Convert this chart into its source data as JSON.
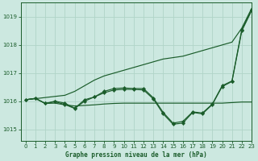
{
  "background_color": "#cce8e0",
  "grid_color": "#b0d4c8",
  "line_color": "#1a5c2a",
  "title": "Graphe pression niveau de la mer (hPa)",
  "xlim": [
    -0.5,
    23
  ],
  "ylim": [
    1014.6,
    1019.5
  ],
  "yticks": [
    1015,
    1016,
    1017,
    1018,
    1019
  ],
  "xticks": [
    0,
    1,
    2,
    3,
    4,
    5,
    6,
    7,
    8,
    9,
    10,
    11,
    12,
    13,
    14,
    15,
    16,
    17,
    18,
    19,
    20,
    21,
    22,
    23
  ],
  "series_diag": [
    1016.05,
    1016.09,
    1016.13,
    1016.17,
    1016.21,
    1016.35,
    1016.55,
    1016.75,
    1016.9,
    1017.0,
    1017.1,
    1017.2,
    1017.3,
    1017.4,
    1017.5,
    1017.55,
    1017.6,
    1017.7,
    1017.8,
    1017.9,
    1018.0,
    1018.1,
    1018.6,
    1019.3
  ],
  "series_marker_high": [
    1016.05,
    1016.1,
    1015.92,
    1016.0,
    1015.93,
    1015.75,
    1016.05,
    1016.15,
    1016.35,
    1016.45,
    1016.47,
    1016.45,
    1016.45,
    1016.12,
    1015.6,
    1015.22,
    1015.28,
    1015.62,
    1015.58,
    1015.9,
    1016.55,
    1016.72,
    1018.55,
    1019.25
  ],
  "series_marker_low": [
    1016.05,
    1016.1,
    1015.92,
    1015.98,
    1015.88,
    1015.74,
    1016.0,
    1016.15,
    1016.3,
    1016.4,
    1016.42,
    1016.42,
    1016.4,
    1016.08,
    1015.55,
    1015.18,
    1015.22,
    1015.6,
    1015.55,
    1015.88,
    1016.52,
    1016.7,
    1018.5,
    1019.22
  ],
  "series_flat": [
    1016.05,
    1016.1,
    1015.92,
    1015.93,
    1015.87,
    1015.83,
    1015.85,
    1015.87,
    1015.9,
    1015.92,
    1015.93,
    1015.93,
    1015.93,
    1015.93,
    1015.93,
    1015.93,
    1015.93,
    1015.93,
    1015.93,
    1015.93,
    1015.93,
    1015.95,
    1015.97,
    1015.97
  ]
}
